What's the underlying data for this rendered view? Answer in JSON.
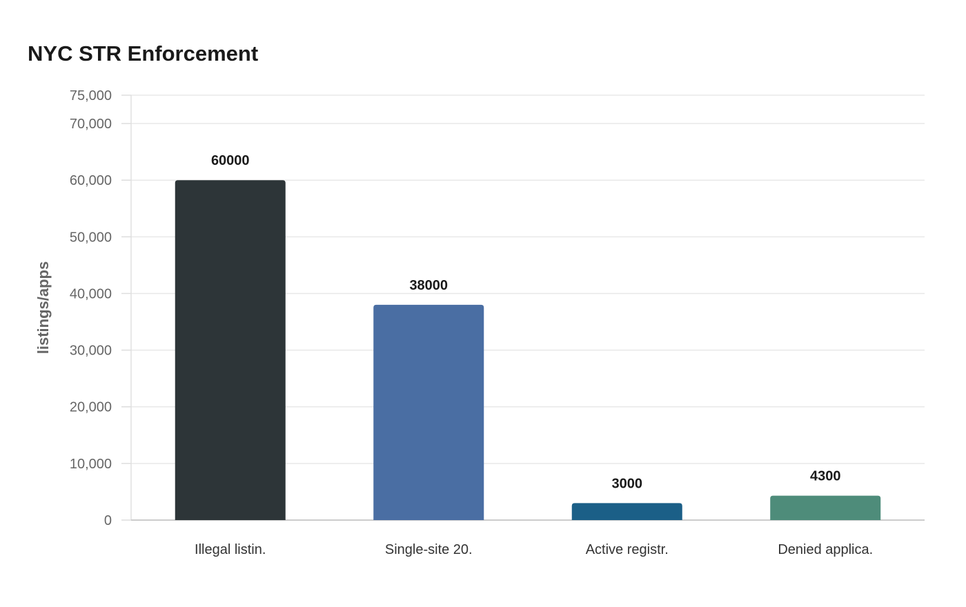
{
  "chart_data": {
    "type": "bar",
    "title": "NYC STR Enforcement",
    "xlabel": "",
    "ylabel": "listings/apps",
    "categories": [
      "Illegal listin.",
      "Single-site 20.",
      "Active registr.",
      "Denied applica."
    ],
    "values": [
      60000,
      38000,
      3000,
      4300
    ],
    "colors": [
      "#2d3538",
      "#4a6ea3",
      "#1b5f87",
      "#4e8c7a"
    ],
    "ylim": [
      0,
      75000
    ],
    "yticks": [
      0,
      10000,
      20000,
      30000,
      40000,
      50000,
      60000,
      70000,
      75000
    ],
    "ytick_labels": [
      "0",
      "10,000",
      "20,000",
      "30,000",
      "40,000",
      "50,000",
      "60,000",
      "70,000",
      "75,000"
    ],
    "grid": true,
    "legend": "none"
  }
}
